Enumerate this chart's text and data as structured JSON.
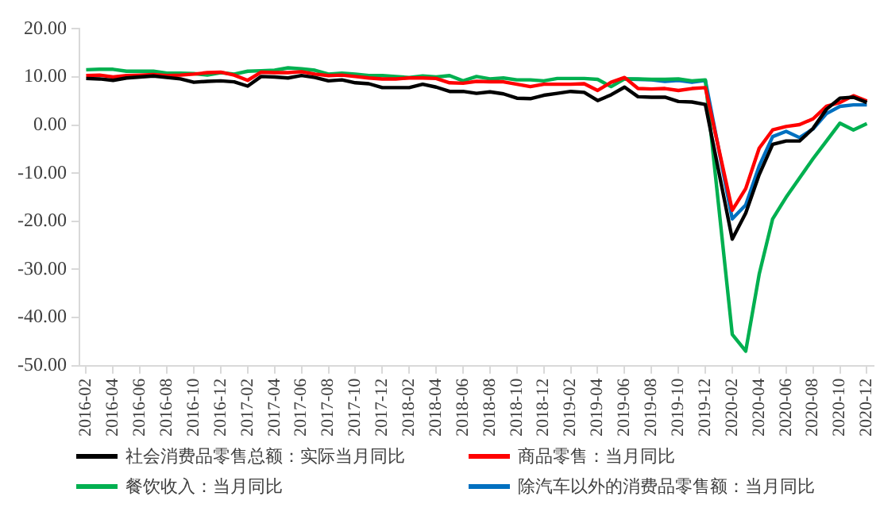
{
  "chart_data": {
    "type": "line",
    "categories": [
      "2016-02",
      null,
      "2016-04",
      null,
      "2016-06",
      null,
      "2016-08",
      null,
      "2016-10",
      null,
      "2016-12",
      null,
      "2017-02",
      null,
      "2017-04",
      null,
      "2017-06",
      null,
      "2017-08",
      null,
      "2017-10",
      null,
      "2017-12",
      null,
      "2018-02",
      null,
      "2018-04",
      null,
      "2018-06",
      null,
      "2018-08",
      null,
      "2018-10",
      null,
      "2018-12",
      null,
      "2019-02",
      null,
      "2019-04",
      null,
      "2019-06",
      null,
      "2019-08",
      null,
      "2019-10",
      null,
      "2019-12",
      null,
      "2020-02",
      null,
      "2020-04",
      null,
      "2020-06",
      null,
      "2020-08",
      null,
      "2020-10",
      null,
      "2020-12"
    ],
    "series": [
      {
        "name": "社会消费品零售总额：实际当月同比",
        "color": "#000000",
        "values": [
          9.7,
          9.6,
          9.3,
          9.8,
          10.0,
          10.2,
          9.9,
          9.6,
          8.9,
          9.1,
          9.2,
          9.0,
          8.1,
          10.1,
          10.0,
          9.8,
          10.3,
          9.9,
          9.2,
          9.4,
          8.8,
          8.6,
          7.8,
          7.8,
          7.8,
          8.5,
          7.9,
          7.0,
          7.0,
          6.6,
          6.9,
          6.5,
          5.6,
          5.5,
          6.2,
          6.6,
          7.0,
          6.8,
          5.1,
          6.3,
          7.9,
          5.9,
          5.8,
          5.8,
          4.9,
          4.8,
          4.3,
          null,
          -23.7,
          -18.3,
          -10.3,
          -4.0,
          -3.3,
          -3.3,
          -0.7,
          3.3,
          5.6,
          5.8,
          4.7
        ]
      },
      {
        "name": "商品零售：当月同比",
        "color": "#ff0000",
        "values": [
          10.3,
          10.4,
          10.0,
          10.3,
          10.4,
          10.5,
          10.3,
          10.4,
          10.6,
          10.9,
          11.0,
          10.4,
          9.3,
          11.0,
          10.9,
          10.9,
          11.1,
          10.6,
          10.3,
          10.4,
          10.1,
          9.8,
          9.6,
          9.6,
          9.8,
          9.8,
          9.7,
          8.8,
          8.7,
          9.1,
          9.0,
          9.0,
          8.5,
          8.0,
          8.5,
          8.5,
          8.5,
          8.6,
          7.2,
          8.9,
          9.9,
          7.6,
          7.5,
          7.6,
          7.2,
          7.6,
          7.8,
          null,
          -17.7,
          -13.2,
          -4.8,
          -1.0,
          -0.3,
          0.1,
          1.3,
          3.9,
          4.7,
          6.1,
          5.0
        ]
      },
      {
        "name": "餐饮收入：当月同比",
        "color": "#00b050",
        "values": [
          11.5,
          11.6,
          11.6,
          11.2,
          11.2,
          11.2,
          10.8,
          10.8,
          10.7,
          10.4,
          10.9,
          10.6,
          11.2,
          11.3,
          11.4,
          11.9,
          11.7,
          11.4,
          10.6,
          10.8,
          10.6,
          10.3,
          10.3,
          10.1,
          9.9,
          10.2,
          10.0,
          10.3,
          9.2,
          10.1,
          9.6,
          9.8,
          9.4,
          9.4,
          9.2,
          9.7,
          9.7,
          9.7,
          9.5,
          8.0,
          9.6,
          9.6,
          9.5,
          9.5,
          9.6,
          9.2,
          9.4,
          null,
          -43.5,
          -47.0,
          -31.0,
          -19.5,
          -15.0,
          -11.0,
          -7.0,
          -3.3,
          0.4,
          -1.0,
          0.3
        ]
      },
      {
        "name": "除汽车以外的消费品零售额：当月同比",
        "color": "#0070c0",
        "values": [
          null,
          null,
          null,
          null,
          null,
          null,
          null,
          null,
          null,
          null,
          null,
          null,
          null,
          null,
          null,
          null,
          null,
          null,
          null,
          null,
          null,
          null,
          null,
          null,
          null,
          null,
          null,
          null,
          null,
          null,
          null,
          null,
          null,
          null,
          null,
          null,
          null,
          null,
          null,
          null,
          9.6,
          9.5,
          9.4,
          9.1,
          9.3,
          8.9,
          9.3,
          null,
          -19.5,
          -16.6,
          -8.5,
          -2.4,
          -1.3,
          -2.6,
          -0.8,
          2.4,
          3.9,
          4.2,
          4.2
        ]
      }
    ],
    "ylim": [
      -50,
      20
    ],
    "yticks": [
      {
        "value": -50,
        "label": "-50.00"
      },
      {
        "value": -40,
        "label": "-40.00"
      },
      {
        "value": -30,
        "label": "-30.00"
      },
      {
        "value": -20,
        "label": "-20.00"
      },
      {
        "value": -10,
        "label": "-10.00"
      },
      {
        "value": 0,
        "label": "0.00"
      },
      {
        "value": 10,
        "label": "10.00"
      },
      {
        "value": 20,
        "label": "20.00"
      }
    ],
    "grid": false,
    "legend": "bottom",
    "marker": "none",
    "line_style": "solid"
  }
}
